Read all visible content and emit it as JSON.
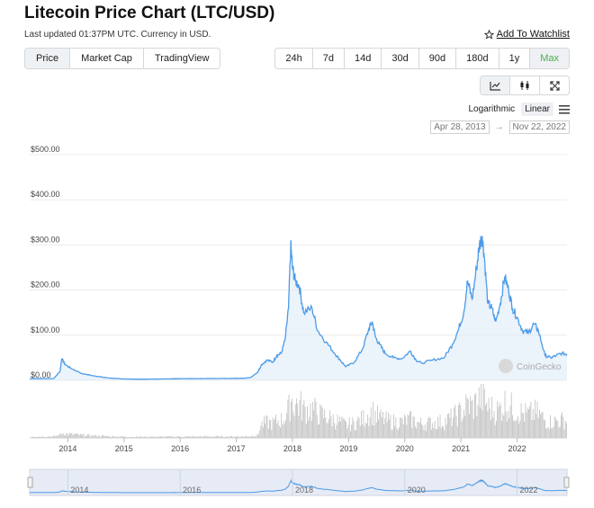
{
  "header": {
    "title": "Litecoin Price Chart (LTC/USD)",
    "updated": "Last updated 01:37PM UTC. Currency in USD.",
    "watchlist": "Add To Watchlist"
  },
  "tabs_left": [
    {
      "label": "Price",
      "active": true
    },
    {
      "label": "Market Cap",
      "active": false
    },
    {
      "label": "TradingView",
      "active": false
    }
  ],
  "tabs_right": [
    {
      "label": "24h",
      "active": false
    },
    {
      "label": "7d",
      "active": false
    },
    {
      "label": "14d",
      "active": false
    },
    {
      "label": "30d",
      "active": false
    },
    {
      "label": "90d",
      "active": false
    },
    {
      "label": "180d",
      "active": false
    },
    {
      "label": "1y",
      "active": false
    },
    {
      "label": "Max",
      "active": true
    }
  ],
  "chart_tools": [
    "line-chart-icon",
    "candlestick-icon",
    "fullscreen-icon"
  ],
  "scale": {
    "log_label": "Logarithmic",
    "linear_label": "Linear",
    "active": "Linear"
  },
  "date_range": {
    "from": "Apr 28, 2013",
    "to": "Nov 22, 2022"
  },
  "watermark": "CoinGecko",
  "colors": {
    "line": "#4c9be8",
    "fill": "#dbe9f8",
    "volume": "#9e9e9e",
    "active_tab": "#4caf50"
  },
  "chart_data": {
    "type": "area",
    "title": "Litecoin Price Chart (LTC/USD)",
    "ylabel": "",
    "xlabel": "",
    "ylim": [
      0,
      500
    ],
    "yticks": [
      "$0.00",
      "$100.00",
      "$200.00",
      "$300.00",
      "$400.00",
      "$500.00"
    ],
    "xticks": [
      "2014",
      "2015",
      "2016",
      "2017",
      "2018",
      "2019",
      "2020",
      "2021",
      "2022"
    ],
    "navigator_ticks": [
      "2014",
      "2016",
      "2018",
      "2020",
      "2022"
    ],
    "x_range": [
      2013.32,
      2022.89
    ],
    "series": [
      {
        "x": [
          2013.32,
          2013.75,
          2013.86,
          2013.89,
          2013.95,
          2014.05,
          2014.25,
          2014.5,
          2014.75,
          2015.0,
          2015.3,
          2015.6,
          2015.9,
          2016.3,
          2016.6,
          2016.9,
          2017.1,
          2017.25,
          2017.38,
          2017.45,
          2017.55,
          2017.65,
          2017.72,
          2017.8,
          2017.87,
          2017.93,
          2017.97,
          2018.0,
          2018.05,
          2018.12,
          2018.2,
          2018.35,
          2018.45,
          2018.6,
          2018.75,
          2018.85,
          2018.95,
          2019.1,
          2019.25,
          2019.35,
          2019.42,
          2019.48,
          2019.55,
          2019.65,
          2019.8,
          2019.95,
          2020.1,
          2020.2,
          2020.3,
          2020.5,
          2020.7,
          2020.85,
          2020.95,
          2021.05,
          2021.12,
          2021.2,
          2021.28,
          2021.33,
          2021.38,
          2021.42,
          2021.48,
          2021.55,
          2021.62,
          2021.7,
          2021.78,
          2021.85,
          2021.92,
          2022.0,
          2022.1,
          2022.2,
          2022.3,
          2022.38,
          2022.5,
          2022.6,
          2022.7,
          2022.8,
          2022.89
        ],
        "y": [
          3.5,
          4,
          20,
          48,
          35,
          27,
          15,
          9,
          5,
          3,
          2.5,
          2.8,
          3.5,
          3.8,
          4,
          4.2,
          4.5,
          6,
          18,
          35,
          45,
          40,
          55,
          60,
          90,
          160,
          300,
          250,
          220,
          210,
          150,
          160,
          110,
          85,
          60,
          45,
          30,
          40,
          70,
          110,
          130,
          95,
          80,
          60,
          50,
          48,
          65,
          45,
          38,
          45,
          50,
          80,
          110,
          150,
          220,
          180,
          250,
          300,
          320,
          270,
          170,
          160,
          130,
          170,
          230,
          200,
          160,
          140,
          110,
          105,
          125,
          110,
          55,
          50,
          55,
          60,
          58
        ]
      },
      {
        "name": "Volume"
      }
    ]
  }
}
